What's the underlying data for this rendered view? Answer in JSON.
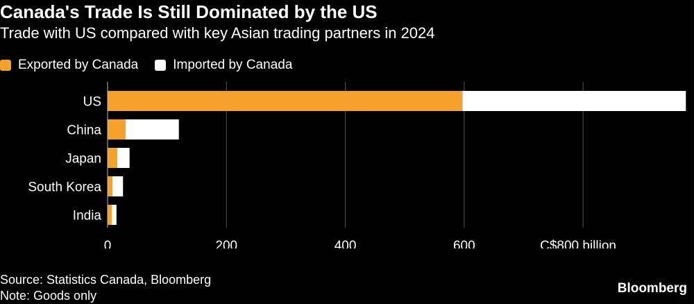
{
  "header": {
    "title": "Canada's Trade Is Still Dominated by the US",
    "subtitle": "Trade with US compared with key Asian trading partners in 2024"
  },
  "legend": {
    "exported_label": "Exported by Canada",
    "imported_label": "Imported by Canada"
  },
  "colors": {
    "exported": "#f5a12c",
    "imported": "#ffffff",
    "grid": "#555555",
    "background": "#000000"
  },
  "chart_data": {
    "type": "bar",
    "orientation": "horizontal",
    "stacked": true,
    "categories": [
      "US",
      "China",
      "Japan",
      "South Korea",
      "India"
    ],
    "series": [
      {
        "name": "Exported by Canada",
        "values": [
          597,
          30,
          16,
          8,
          7
        ]
      },
      {
        "name": "Imported by Canada",
        "values": [
          376,
          90,
          21,
          18,
          8
        ]
      }
    ],
    "xlim": [
      0,
      975
    ],
    "x_ticks": [
      0,
      200,
      400,
      600,
      800
    ],
    "x_tick_labels": [
      "0",
      "200",
      "400",
      "600",
      "C$800 billion"
    ],
    "grid": true
  },
  "footer": {
    "source": "Source: Statistics Canada, Bloomberg",
    "note": "Note: Goods only",
    "brand": "Bloomberg"
  }
}
